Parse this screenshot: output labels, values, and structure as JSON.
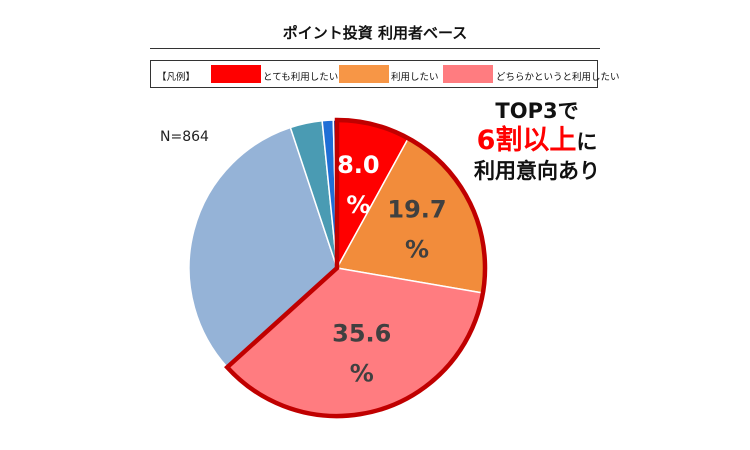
{
  "title": "ポイント投資 利用者ベース",
  "legend": {
    "heading": "【凡例】",
    "items": [
      {
        "label": "とても利用したい",
        "color": "#ff0000"
      },
      {
        "label": "利用したい",
        "color": "#f79646"
      },
      {
        "label": "どちらかというと利用したい",
        "color": "#ff7c80"
      }
    ]
  },
  "n_label": "N=864",
  "callout": {
    "line1": "TOP3で",
    "line2_emphasis": "6割以上",
    "line2_suffix": "に",
    "line3": "利用意向あり"
  },
  "chart_data": {
    "type": "pie",
    "start_angle_deg": 0,
    "direction": "clockwise",
    "slices": [
      {
        "label": "とても利用したい",
        "value": 8.0,
        "display_value": "8.0",
        "unit": "%",
        "color": "#ff0000",
        "text_color": "#ffffff",
        "labeled": true,
        "highlight": true
      },
      {
        "label": "利用したい",
        "value": 19.7,
        "display_value": "19.7",
        "unit": "%",
        "color": "#f28c3b",
        "text_color": "#404040",
        "labeled": true,
        "highlight": true
      },
      {
        "label": "どちらかというと利用したい",
        "value": 35.6,
        "display_value": "35.6",
        "unit": "%",
        "color": "#ff7c80",
        "text_color": "#404040",
        "labeled": true,
        "highlight": true
      },
      {
        "label": "",
        "value": 31.6,
        "color": "#95b3d7",
        "labeled": false,
        "highlight": false
      },
      {
        "label": "",
        "value": 3.5,
        "color": "#4a9bb3",
        "labeled": false,
        "highlight": false
      },
      {
        "label": "",
        "value": 1.2,
        "color": "#1f6fd6",
        "labeled": false,
        "highlight": false
      },
      {
        "label": "",
        "value": 0.4,
        "color": "#1f3f9a",
        "labeled": false,
        "highlight": false
      }
    ],
    "highlight_outline_color": "#c00000"
  }
}
